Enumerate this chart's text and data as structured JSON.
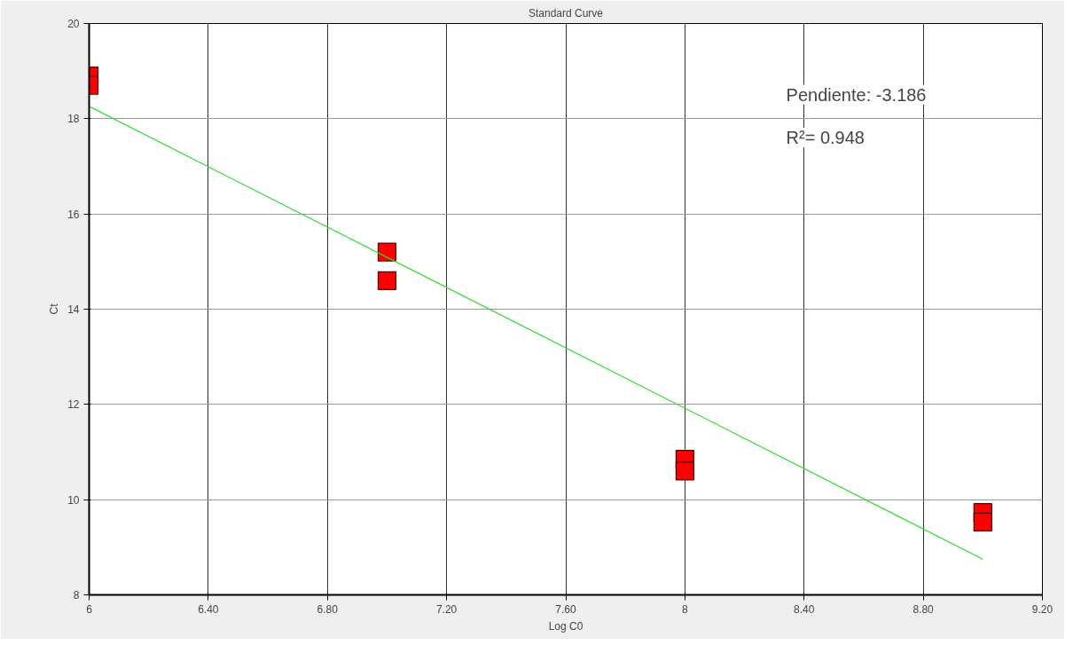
{
  "chart_data": {
    "type": "scatter",
    "title": "Standard Curve",
    "xlabel": "Log C0",
    "ylabel": "Ct",
    "xlim": [
      6,
      9.2
    ],
    "ylim": [
      8,
      20
    ],
    "xticks": [
      6,
      {
        "value": 6.4,
        "label": "6.40"
      },
      {
        "value": 6.8,
        "label": "6.80"
      },
      {
        "value": 7.2,
        "label": "7.20"
      },
      {
        "value": 7.6,
        "label": "7.60"
      },
      8,
      {
        "value": 8.4,
        "label": "8.40"
      },
      {
        "value": 8.8,
        "label": "8.80"
      },
      {
        "value": 9.2,
        "label": "9.20"
      }
    ],
    "yticks": [
      8,
      10,
      12,
      14,
      16,
      18,
      20
    ],
    "grid": true,
    "series": [
      {
        "marker": "square",
        "color": "#ff0000",
        "x": [
          6,
          6,
          7,
          7,
          8,
          8,
          9,
          9
        ],
        "values": [
          18.9,
          18.7,
          15.2,
          14.6,
          10.85,
          10.6,
          9.73,
          9.53
        ]
      },
      {
        "type": "line",
        "color": "#33dd33",
        "x": [
          6,
          9
        ],
        "values": [
          18.26,
          8.75
        ]
      }
    ],
    "annotations": [
      "Pendiente: -3.186",
      "R²= 0.948"
    ]
  }
}
